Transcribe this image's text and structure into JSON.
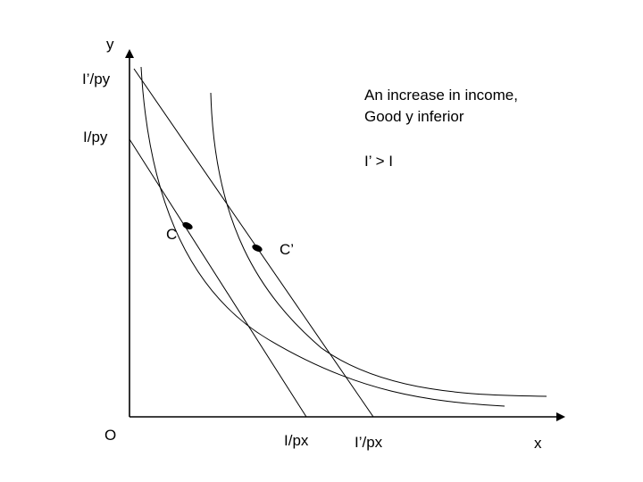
{
  "axes": {
    "y_label": "y",
    "x_label": "x",
    "origin_label": "O"
  },
  "intercepts": {
    "y_new": "I’/py",
    "y_old": "I/py",
    "x_old": "I/px",
    "x_new": "I’/px"
  },
  "points": {
    "c": "C",
    "c_prime": "C’"
  },
  "annotation": {
    "line1": "An increase in income,",
    "line2": "Good y inferior",
    "line3": "I’ > I"
  },
  "colors": {
    "line": "#000000",
    "background": "#ffffff"
  }
}
